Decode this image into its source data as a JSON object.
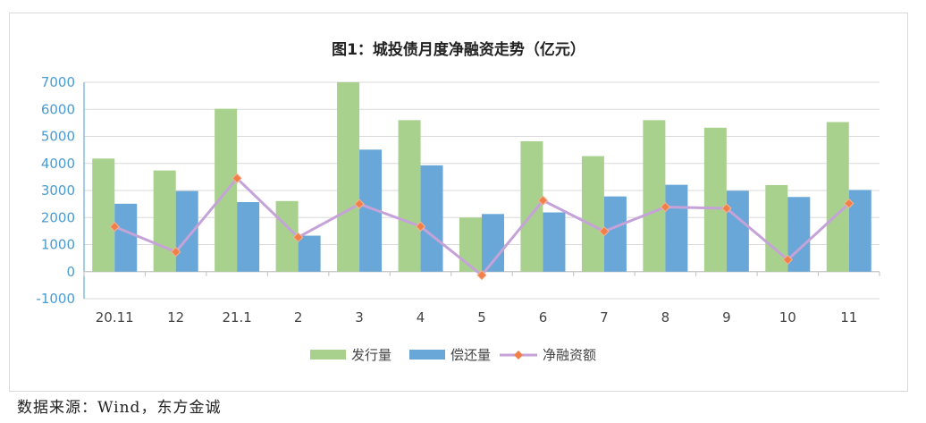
{
  "chart_data": {
    "type": "bar",
    "title": "图1：城投债月度净融资走势（亿元）",
    "categories": [
      "20.11",
      "12",
      "21.1",
      "2",
      "3",
      "4",
      "5",
      "6",
      "7",
      "8",
      "9",
      "10",
      "11"
    ],
    "ylim": [
      -1000,
      7000
    ],
    "yticks": [
      -1000,
      0,
      1000,
      2000,
      3000,
      4000,
      5000,
      6000,
      7000
    ],
    "ytick_labels": [
      "-1000",
      "0",
      "1000",
      "2000",
      "3000",
      "4000",
      "5000",
      "6000",
      "7000"
    ],
    "grid": true,
    "legend_position": "bottom",
    "series": [
      {
        "name": "发行量",
        "kind": "bar",
        "color": "#a9d18e",
        "values": [
          4180,
          3740,
          6020,
          2610,
          7000,
          5600,
          2000,
          4820,
          4270,
          5600,
          5320,
          3200,
          5530
        ]
      },
      {
        "name": "偿还量",
        "kind": "bar",
        "color": "#68a7d8",
        "values": [
          2510,
          2980,
          2570,
          1330,
          4510,
          3930,
          2130,
          2190,
          2780,
          3210,
          2990,
          2760,
          3020
        ]
      },
      {
        "name": "净融资额",
        "kind": "line",
        "color": "#c5a3d9",
        "marker_color": "#f07f4a",
        "values": [
          1660,
          730,
          3450,
          1270,
          2500,
          1670,
          -130,
          2630,
          1490,
          2390,
          2340,
          440,
          2520
        ]
      }
    ]
  },
  "source_note": "数据来源：Wind，东方金诚"
}
